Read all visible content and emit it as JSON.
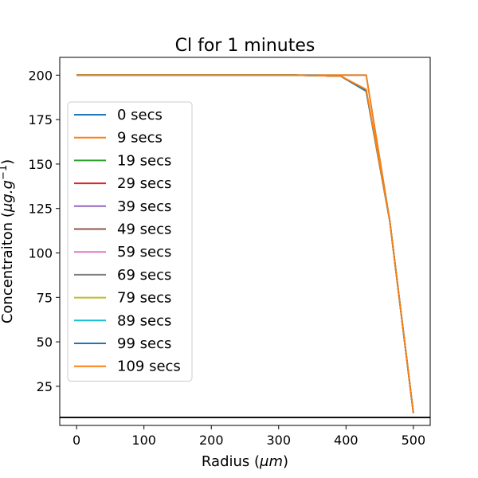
{
  "chart_data": {
    "type": "line",
    "title": "Cl for 1 minutes",
    "xlabel": "Radius ($\\mu m$)",
    "xlabel_parts": {
      "main": "Radius (",
      "unit": "μm",
      "close": ")"
    },
    "ylabel": "Concentraiton ($\\mu g.g^{-1}$)",
    "ylabel_parts": {
      "main": "Concentraiton (",
      "unit": "μg.g",
      "sup": "−1",
      "close": ")"
    },
    "xlim": [
      -25,
      525
    ],
    "ylim": [
      3,
      210
    ],
    "xticks": [
      0,
      100,
      200,
      300,
      400,
      500
    ],
    "yticks": [
      25,
      50,
      75,
      100,
      125,
      150,
      175,
      200
    ],
    "grid": false,
    "legend_position": "center-left",
    "hline": {
      "y": 7.5,
      "color": "#000000"
    },
    "series": [
      {
        "name": "0 secs",
        "color": "#1f77b4",
        "x": [
          0,
          322,
          430,
          465,
          500
        ],
        "y": [
          200,
          200,
          200,
          118,
          10
        ]
      },
      {
        "name": "9 secs",
        "color": "#ff7f0e",
        "x": [
          0,
          322,
          430,
          465,
          500
        ],
        "y": [
          200,
          200,
          200,
          118,
          10
        ]
      },
      {
        "name": "19 secs",
        "color": "#2ca02c",
        "x": [
          0,
          322,
          392,
          430,
          465,
          500
        ],
        "y": [
          200,
          200,
          199.5,
          191,
          118,
          10
        ]
      },
      {
        "name": "29 secs",
        "color": "#d62728",
        "x": [
          0,
          322,
          392,
          430,
          465,
          500
        ],
        "y": [
          200,
          200,
          199.5,
          191,
          118,
          10
        ]
      },
      {
        "name": "39 secs",
        "color": "#9467bd",
        "x": [
          0,
          322,
          392,
          430,
          465,
          500
        ],
        "y": [
          200,
          200,
          199.5,
          191,
          118,
          10
        ]
      },
      {
        "name": "49 secs",
        "color": "#8c564b",
        "x": [
          0,
          322,
          392,
          430,
          465,
          500
        ],
        "y": [
          200,
          200,
          199.5,
          191,
          118,
          10
        ]
      },
      {
        "name": "59 secs",
        "color": "#e377c2",
        "x": [
          0,
          322,
          392,
          430,
          465,
          500
        ],
        "y": [
          200,
          200,
          199.5,
          191,
          118,
          10
        ]
      },
      {
        "name": "69 secs",
        "color": "#7f7f7f",
        "x": [
          0,
          322,
          392,
          430,
          465,
          500
        ],
        "y": [
          200,
          200,
          199.5,
          191,
          118,
          10
        ]
      },
      {
        "name": "79 secs",
        "color": "#bcbd22",
        "x": [
          0,
          322,
          392,
          430,
          465,
          500
        ],
        "y": [
          200,
          200,
          199.5,
          191,
          118,
          10
        ]
      },
      {
        "name": "89 secs",
        "color": "#17becf",
        "x": [
          0,
          322,
          392,
          430,
          465,
          500
        ],
        "y": [
          200,
          200,
          199.5,
          191,
          118,
          10
        ]
      },
      {
        "name": "99 secs",
        "color": "#1f77b4",
        "x": [
          0,
          322,
          392,
          430,
          465,
          500
        ],
        "y": [
          200,
          200,
          199.5,
          191,
          118,
          10
        ]
      },
      {
        "name": "109 secs",
        "color": "#ff7f0e",
        "x": [
          0,
          322,
          392,
          430,
          465,
          500
        ],
        "y": [
          200,
          200,
          199.5,
          192,
          118,
          10
        ]
      }
    ]
  }
}
